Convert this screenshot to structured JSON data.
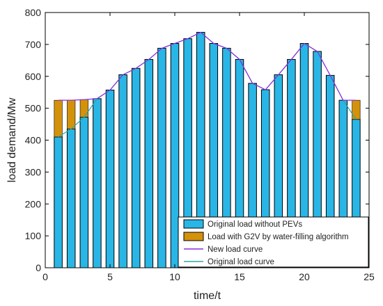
{
  "chart_data": {
    "type": "bar",
    "xlabel": "time/t",
    "ylabel": "load demand/Mw",
    "xlim": [
      0,
      25
    ],
    "ylim": [
      0,
      800
    ],
    "xticks": [
      0,
      5,
      10,
      15,
      20,
      25
    ],
    "yticks": [
      0,
      100,
      200,
      300,
      400,
      500,
      600,
      700,
      800
    ],
    "x": [
      1,
      2,
      3,
      4,
      5,
      6,
      7,
      8,
      9,
      10,
      11,
      12,
      13,
      14,
      15,
      16,
      17,
      18,
      19,
      20,
      21,
      22,
      23,
      24
    ],
    "series": [
      {
        "name": "Original load without PEVs",
        "kind": "bar",
        "color": "#29b6e6",
        "values": [
          410,
          435,
          472,
          530,
          557,
          605,
          625,
          653,
          688,
          703,
          718,
          738,
          703,
          688,
          653,
          578,
          558,
          605,
          653,
          703,
          678,
          603,
          525,
          465
        ]
      },
      {
        "name": "Load with G2V by water-filling algorithm",
        "kind": "bar-stack",
        "color": "#d4920b",
        "values": [
          115,
          90,
          55,
          0,
          0,
          0,
          0,
          0,
          0,
          0,
          0,
          0,
          0,
          0,
          0,
          0,
          0,
          0,
          0,
          0,
          0,
          0,
          0,
          60
        ]
      },
      {
        "name": "New load curve",
        "kind": "line",
        "color": "#8a2be2",
        "values": [
          525,
          525,
          527,
          530,
          557,
          605,
          625,
          653,
          688,
          703,
          718,
          738,
          703,
          688,
          653,
          578,
          558,
          605,
          653,
          703,
          678,
          603,
          525,
          525
        ]
      },
      {
        "name": "Original load curve",
        "kind": "line",
        "color": "#2aa7a0",
        "values": [
          410,
          435,
          472,
          530,
          557,
          605,
          625,
          653,
          688,
          703,
          718,
          738,
          703,
          688,
          653,
          578,
          558,
          605,
          653,
          703,
          678,
          603,
          525,
          465
        ]
      }
    ],
    "legend_position": "bottom-right",
    "grid": false
  }
}
